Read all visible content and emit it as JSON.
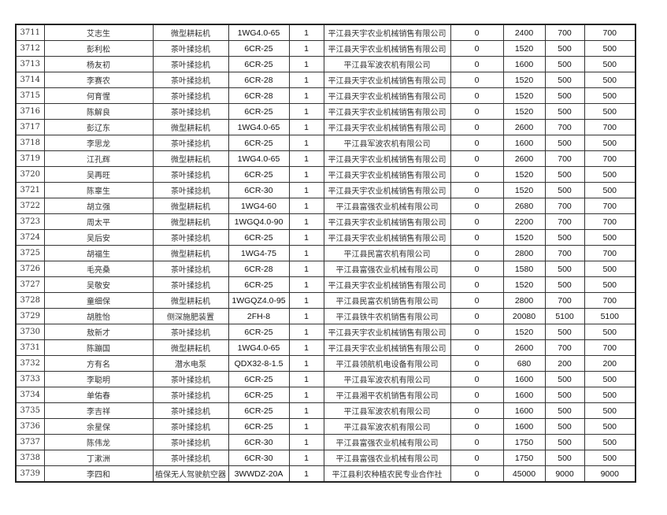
{
  "rows": [
    [
      "3711",
      "艾志生",
      "微型耕耘机",
      "1WG4.0-65",
      "1",
      "平江县天宇农业机械销售有限公司",
      "0",
      "2400",
      "700",
      "700"
    ],
    [
      "3712",
      "彭利松",
      "茶叶揉捻机",
      "6CR-25",
      "1",
      "平江县天宇农业机械销售有限公司",
      "0",
      "1520",
      "500",
      "500"
    ],
    [
      "3713",
      "杨友初",
      "茶叶揉捻机",
      "6CR-25",
      "1",
      "平江县军波农机有限公司",
      "0",
      "1600",
      "500",
      "500"
    ],
    [
      "3714",
      "李赛农",
      "茶叶揉捻机",
      "6CR-28",
      "1",
      "平江县天宇农业机械销售有限公司",
      "0",
      "1520",
      "500",
      "500"
    ],
    [
      "3715",
      "何育惺",
      "茶叶揉捻机",
      "6CR-28",
      "1",
      "平江县天宇农业机械销售有限公司",
      "0",
      "1520",
      "500",
      "500"
    ],
    [
      "3716",
      "陈解良",
      "茶叶揉捻机",
      "6CR-25",
      "1",
      "平江县天宇农业机械销售有限公司",
      "0",
      "1520",
      "500",
      "500"
    ],
    [
      "3717",
      "彭辽东",
      "微型耕耘机",
      "1WG4.0-65",
      "1",
      "平江县天宇农业机械销售有限公司",
      "0",
      "2600",
      "700",
      "700"
    ],
    [
      "3718",
      "李思龙",
      "茶叶揉捻机",
      "6CR-25",
      "1",
      "平江县军波农机有限公司",
      "0",
      "1600",
      "500",
      "500"
    ],
    [
      "3719",
      "江孔辉",
      "微型耕耘机",
      "1WG4.0-65",
      "1",
      "平江县天宇农业机械销售有限公司",
      "0",
      "2600",
      "700",
      "700"
    ],
    [
      "3720",
      "吴再旺",
      "茶叶揉捻机",
      "6CR-25",
      "1",
      "平江县天宇农业机械销售有限公司",
      "0",
      "1520",
      "500",
      "500"
    ],
    [
      "3721",
      "陈辜生",
      "茶叶揉捻机",
      "6CR-30",
      "1",
      "平江县天宇农业机械销售有限公司",
      "0",
      "1520",
      "500",
      "500"
    ],
    [
      "3722",
      "胡立强",
      "微型耕耘机",
      "1WG4-60",
      "1",
      "平江县富强农业机械有限公司",
      "0",
      "2680",
      "700",
      "700"
    ],
    [
      "3723",
      "周太平",
      "微型耕耘机",
      "1WGQ4.0-90",
      "1",
      "平江县天宇农业机械销售有限公司",
      "0",
      "2200",
      "700",
      "700"
    ],
    [
      "3724",
      "吴后安",
      "茶叶揉捻机",
      "6CR-25",
      "1",
      "平江县天宇农业机械销售有限公司",
      "0",
      "1520",
      "500",
      "500"
    ],
    [
      "3725",
      "胡福生",
      "微型耕耘机",
      "1WG4-75",
      "1",
      "平江县民富农机有限公司",
      "0",
      "2800",
      "700",
      "700"
    ],
    [
      "3726",
      "毛亮桑",
      "茶叶揉捻机",
      "6CR-28",
      "1",
      "平江县富强农业机械有限公司",
      "0",
      "1580",
      "500",
      "500"
    ],
    [
      "3727",
      "吴敬安",
      "茶叶揉捻机",
      "6CR-25",
      "1",
      "平江县天宇农业机械销售有限公司",
      "0",
      "1520",
      "500",
      "500"
    ],
    [
      "3728",
      "童细保",
      "微型耕耘机",
      "1WGQZ4.0-95",
      "1",
      "平江县民富农机销售有限公司",
      "0",
      "2800",
      "700",
      "700"
    ],
    [
      "3729",
      "胡胜怡",
      "侧深施肥装置",
      "2FH-8",
      "1",
      "平江县铁牛农机销售有限公司",
      "0",
      "20080",
      "5100",
      "5100"
    ],
    [
      "3730",
      "敖新才",
      "茶叶揉捻机",
      "6CR-25",
      "1",
      "平江县天宇农业机械销售有限公司",
      "0",
      "1520",
      "500",
      "500"
    ],
    [
      "3731",
      "陈蹦国",
      "微型耕耘机",
      "1WG4.0-65",
      "1",
      "平江县天宇农业机械销售有限公司",
      "0",
      "2600",
      "700",
      "700"
    ],
    [
      "3732",
      "方有名",
      "潜水电泵",
      "QDX32-8-1.5",
      "1",
      "平江县领航机电设备有限公司",
      "0",
      "680",
      "200",
      "200"
    ],
    [
      "3733",
      "李聪明",
      "茶叶揉捻机",
      "6CR-25",
      "1",
      "平江县军波农机有限公司",
      "0",
      "1600",
      "500",
      "500"
    ],
    [
      "3734",
      "单佑春",
      "茶叶揉捻机",
      "6CR-25",
      "1",
      "平江县湘平农机销售有限公司",
      "0",
      "1600",
      "500",
      "500"
    ],
    [
      "3735",
      "李吉祥",
      "茶叶揉捻机",
      "6CR-25",
      "1",
      "平江县军波农机有限公司",
      "0",
      "1600",
      "500",
      "500"
    ],
    [
      "3736",
      "余星保",
      "茶叶揉捻机",
      "6CR-25",
      "1",
      "平江县军波农机有限公司",
      "0",
      "1600",
      "500",
      "500"
    ],
    [
      "3737",
      "陈伟龙",
      "茶叶揉捻机",
      "6CR-30",
      "1",
      "平江县富强农业机械有限公司",
      "0",
      "1750",
      "500",
      "500"
    ],
    [
      "3738",
      "丁漱洲",
      "茶叶揉捻机",
      "6CR-30",
      "1",
      "平江县富强农业机械有限公司",
      "0",
      "1750",
      "500",
      "500"
    ],
    [
      "3739",
      "李四和",
      "植保无人驾驶航空器",
      "3WWDZ-20A",
      "1",
      "平江县利农种植农民专业合作社",
      "0",
      "45000",
      "9000",
      "9000"
    ]
  ]
}
